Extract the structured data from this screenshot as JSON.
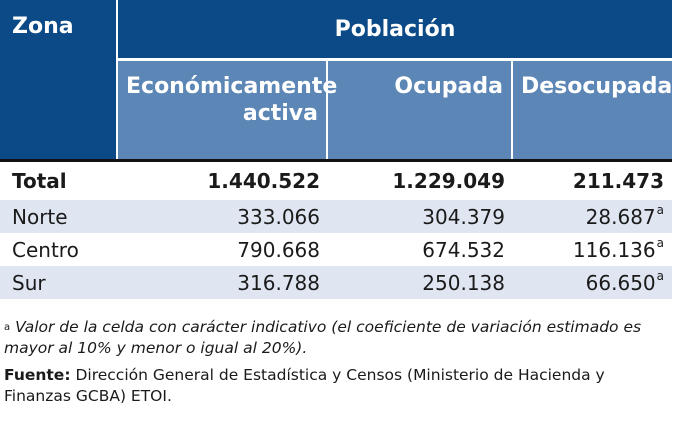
{
  "header": {
    "zona": "Zona",
    "poblacion": "Población",
    "columns": [
      "Económicamente activa",
      "Ocupada",
      "Desocupada"
    ]
  },
  "rows": [
    {
      "zona": "Total",
      "activa": "1.440.522",
      "ocupada": "1.229.049",
      "desocupada": "211.473",
      "mark": ""
    },
    {
      "zona": "Norte",
      "activa": "333.066",
      "ocupada": "304.379",
      "desocupada": "28.687",
      "mark": "a"
    },
    {
      "zona": "Centro",
      "activa": "790.668",
      "ocupada": "674.532",
      "desocupada": "116.136",
      "mark": "a"
    },
    {
      "zona": "Sur",
      "activa": "316.788",
      "ocupada": "250.138",
      "desocupada": "66.650",
      "mark": "a"
    }
  ],
  "notes": {
    "footnote_mark": "a",
    "footnote_text": "Valor de la celda con carácter indicativo (el coeficiente de variación estimado es mayor al 10% y menor o igual al 20%).",
    "source_label": "Fuente:",
    "source_text": "Dirección General de Estadística y Censos (Ministerio de Hacienda y Finanzas GCBA) ETOI."
  },
  "colors": {
    "header_dark": "#0b4a86",
    "header_mid": "#5b86b5",
    "row_shade": "#dfe6f2"
  }
}
